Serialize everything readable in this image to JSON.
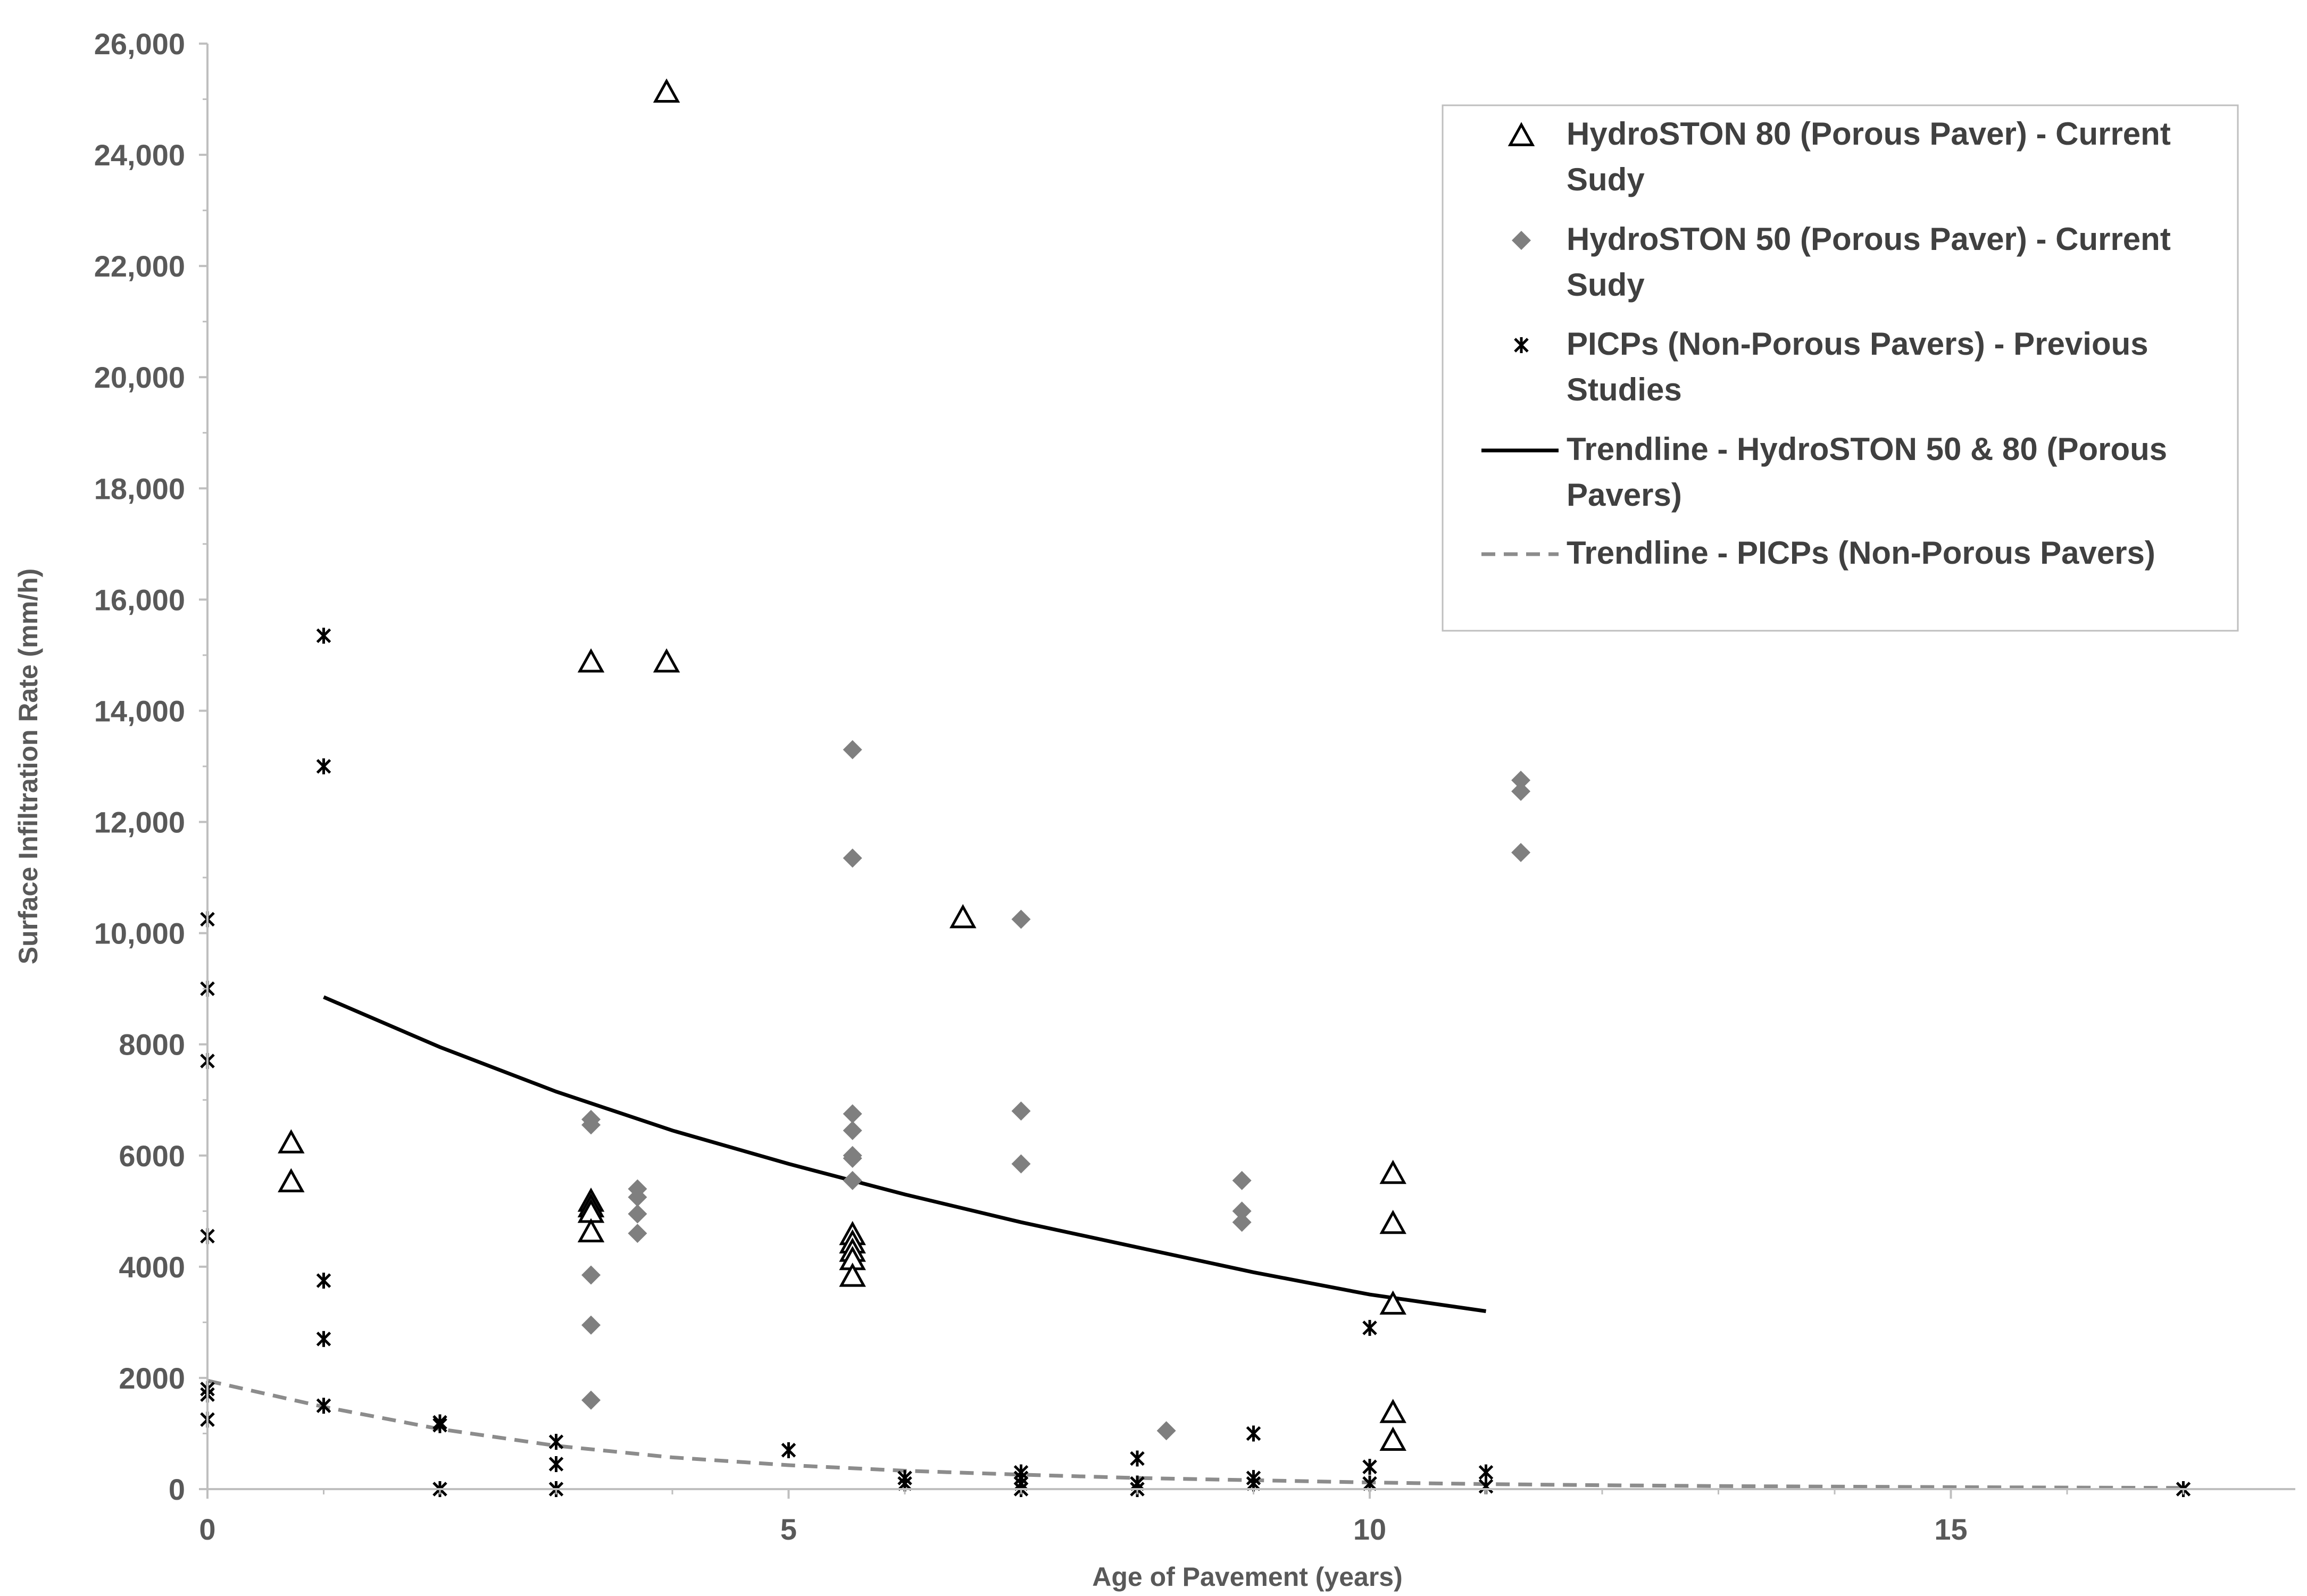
{
  "chart_data": {
    "type": "scatter",
    "title": "",
    "xlabel": "Age of Pavement (years)",
    "ylabel": "Surface Infiltration Rate (mm/h)",
    "xlim": [
      0,
      18
    ],
    "ylim": [
      0,
      26000
    ],
    "x_ticks": [
      0,
      5,
      10,
      15
    ],
    "x_tick_labels": [
      "0",
      "5",
      "10",
      "15"
    ],
    "y_ticks": [
      0,
      2000,
      4000,
      6000,
      8000,
      10000,
      12000,
      14000,
      16000,
      18000,
      20000,
      22000,
      24000,
      26000
    ],
    "y_tick_labels": [
      "0",
      "2000",
      "4000",
      "6000",
      "8000",
      "10,000",
      "12,000",
      "14,000",
      "16,000",
      "18,000",
      "20,000",
      "22,000",
      "24,000",
      "26,000"
    ],
    "grid": false,
    "legend_position": "top-right",
    "colors": {
      "axis": "#bfbfbf",
      "hydroston80": "#000000",
      "hydroston50": "#7f7f7f",
      "picp": "#000000",
      "trend_porous": "#000000",
      "trend_picp": "#8c8c8c"
    },
    "series": [
      {
        "name": "HydroSTON 80 (Porous Paver) - Current Sudy",
        "marker": "triangle-open",
        "points": [
          [
            0.72,
            6200
          ],
          [
            0.72,
            5500
          ],
          [
            3.3,
            14850
          ],
          [
            3.3,
            5150
          ],
          [
            3.3,
            5050
          ],
          [
            3.3,
            4950
          ],
          [
            3.3,
            4600
          ],
          [
            3.95,
            25100
          ],
          [
            3.95,
            14850
          ],
          [
            5.55,
            4550
          ],
          [
            5.55,
            4400
          ],
          [
            5.55,
            4250
          ],
          [
            5.55,
            4100
          ],
          [
            5.55,
            3800
          ],
          [
            6.5,
            10250
          ],
          [
            10.2,
            5650
          ],
          [
            10.2,
            4750
          ],
          [
            10.2,
            3300
          ],
          [
            10.2,
            1350
          ],
          [
            10.2,
            850
          ]
        ]
      },
      {
        "name": "HydroSTON 50 (Porous Paver) - Current Sudy",
        "marker": "diamond",
        "points": [
          [
            3.3,
            6650
          ],
          [
            3.3,
            6550
          ],
          [
            3.3,
            3850
          ],
          [
            3.3,
            2950
          ],
          [
            3.3,
            1600
          ],
          [
            3.7,
            5400
          ],
          [
            3.7,
            5250
          ],
          [
            3.7,
            4950
          ],
          [
            3.7,
            4600
          ],
          [
            5.55,
            13300
          ],
          [
            5.55,
            11350
          ],
          [
            5.55,
            6750
          ],
          [
            5.55,
            6450
          ],
          [
            5.55,
            6000
          ],
          [
            5.55,
            5950
          ],
          [
            5.55,
            5550
          ],
          [
            7.0,
            10250
          ],
          [
            7.0,
            6800
          ],
          [
            7.0,
            5850
          ],
          [
            8.25,
            1050
          ],
          [
            8.9,
            5550
          ],
          [
            8.9,
            5000
          ],
          [
            8.9,
            4800
          ],
          [
            11.3,
            12750
          ],
          [
            11.3,
            12550
          ],
          [
            11.3,
            11450
          ]
        ]
      },
      {
        "name": "PICPs (Non-Porous Pavers) - Previous Studies",
        "marker": "asterisk",
        "points": [
          [
            0,
            10250
          ],
          [
            0,
            9000
          ],
          [
            0,
            7700
          ],
          [
            0,
            4550
          ],
          [
            0,
            1800
          ],
          [
            0,
            1700
          ],
          [
            0,
            1250
          ],
          [
            1,
            15350
          ],
          [
            1,
            13000
          ],
          [
            1,
            3750
          ],
          [
            1,
            2700
          ],
          [
            1,
            1500
          ],
          [
            2,
            1200
          ],
          [
            2,
            1150
          ],
          [
            2,
            0
          ],
          [
            3,
            850
          ],
          [
            3,
            450
          ],
          [
            3,
            0
          ],
          [
            5,
            700
          ],
          [
            6,
            200
          ],
          [
            6,
            100
          ],
          [
            7,
            300
          ],
          [
            7,
            200
          ],
          [
            7,
            100
          ],
          [
            7,
            0
          ],
          [
            8,
            550
          ],
          [
            8,
            100
          ],
          [
            8,
            0
          ],
          [
            9,
            1000
          ],
          [
            9,
            200
          ],
          [
            9,
            100
          ],
          [
            10,
            2900
          ],
          [
            10,
            400
          ],
          [
            10,
            100
          ],
          [
            11,
            300
          ],
          [
            11,
            50
          ],
          [
            17,
            0
          ]
        ]
      }
    ],
    "trendlines": [
      {
        "name": "Trendline - HydroSTON 50 & 80 (Porous Pavers)",
        "style": "solid",
        "x": [
          1,
          2,
          3,
          4,
          5,
          6,
          7,
          8,
          9,
          10,
          11
        ],
        "y": [
          8850,
          7950,
          7150,
          6450,
          5850,
          5300,
          4800,
          4350,
          3900,
          3500,
          3200
        ]
      },
      {
        "name": "Trendline - PICPs (Non-Porous Pavers)",
        "style": "dashed",
        "x": [
          0,
          1,
          2,
          3,
          4,
          5,
          6,
          7,
          8,
          9,
          10,
          11,
          12,
          13,
          14,
          15,
          16,
          17
        ],
        "y": [
          1950,
          1480,
          1080,
          780,
          570,
          430,
          330,
          260,
          200,
          160,
          120,
          90,
          70,
          55,
          45,
          35,
          28,
          22
        ]
      }
    ]
  }
}
